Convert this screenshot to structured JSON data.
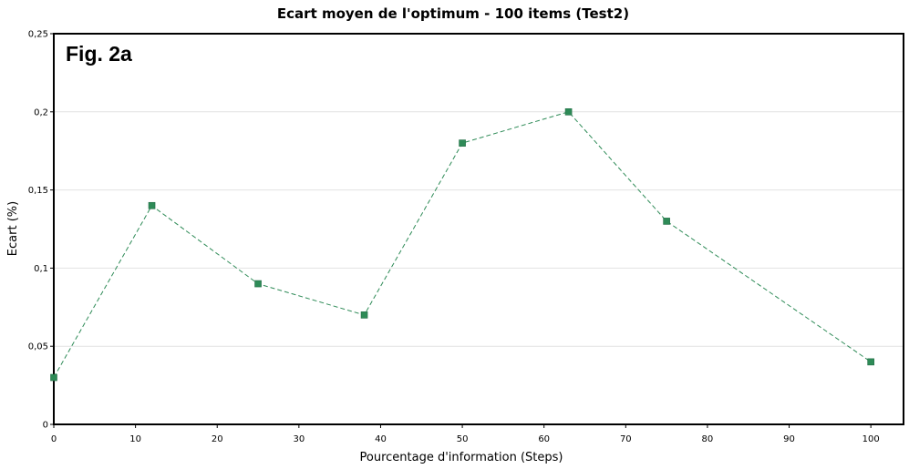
{
  "chart_data": {
    "type": "line",
    "title": "Ecart moyen de l'optimum - 100 items (Test2)",
    "annotation": "Fig. 2a",
    "xlabel": "Pourcentage d'information (Steps)",
    "ylabel": "Ecart (%)",
    "xlim": [
      0,
      104
    ],
    "ylim": [
      0,
      0.25
    ],
    "xticks": [
      0,
      10,
      20,
      30,
      40,
      50,
      60,
      70,
      80,
      90,
      100
    ],
    "xtick_labels": [
      "0",
      "10",
      "20",
      "30",
      "40",
      "50",
      "60",
      "70",
      "80",
      "90",
      "100"
    ],
    "yticks": [
      0,
      0.05,
      0.1,
      0.15,
      0.2,
      0.25
    ],
    "ytick_labels": [
      "0",
      "0,05",
      "0,1",
      "0,15",
      "0,2",
      "0,25"
    ],
    "grid": true,
    "series": [
      {
        "x": [
          0,
          12,
          25,
          38,
          50,
          63,
          75,
          100
        ],
        "y": [
          0.03,
          0.14,
          0.09,
          0.07,
          0.18,
          0.2,
          0.13,
          0.04
        ],
        "color": "#2e8b57",
        "line_style": "dashed",
        "marker": "square"
      }
    ]
  }
}
